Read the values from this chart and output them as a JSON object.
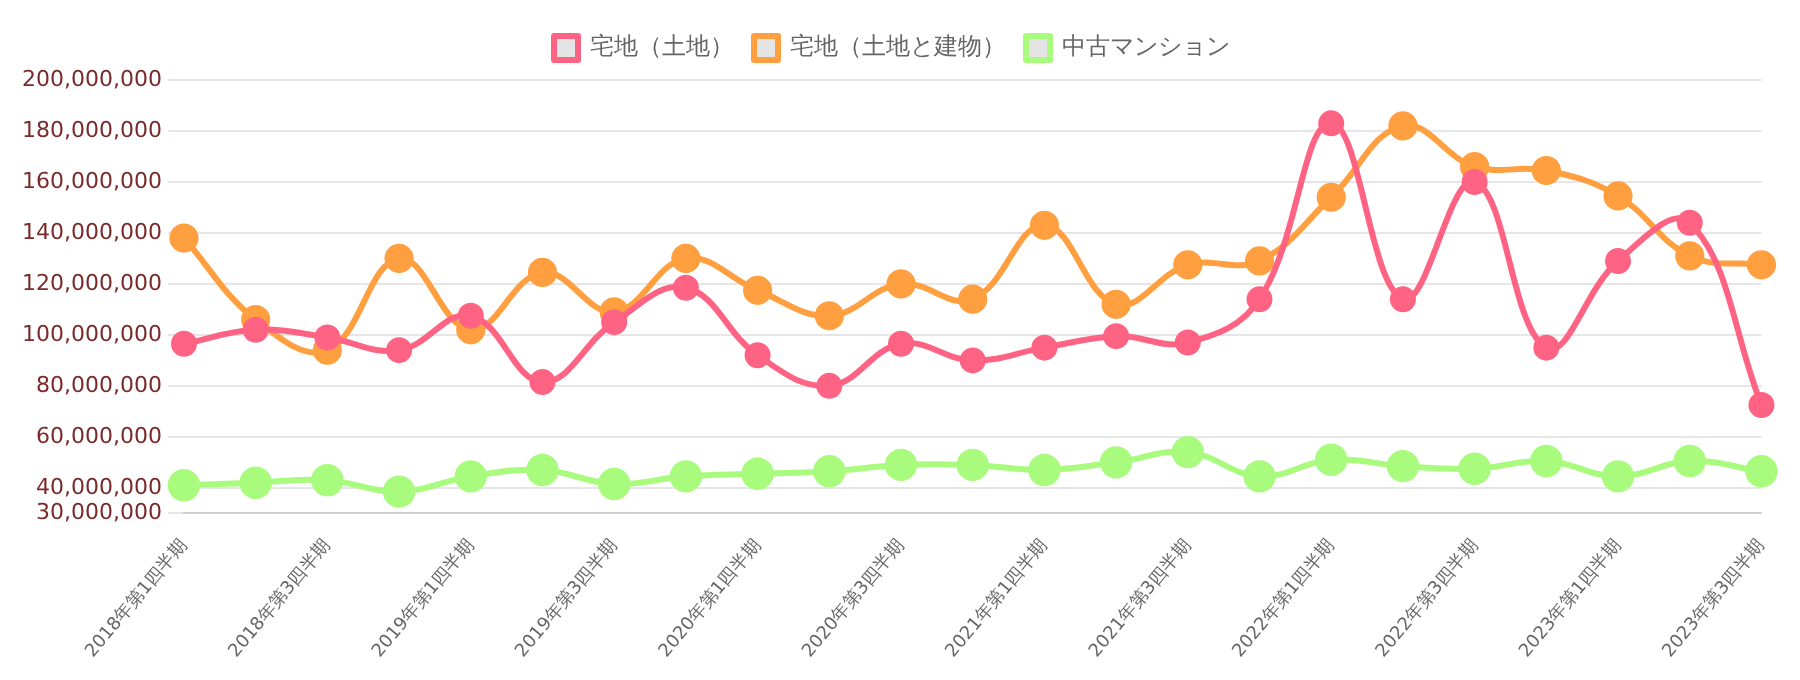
{
  "chart_data": {
    "type": "line",
    "categories": [
      "2018年第1四半期",
      null,
      "2018年第3四半期",
      null,
      "2019年第1四半期",
      null,
      "2019年第3四半期",
      null,
      "2020年第1四半期",
      null,
      "2020年第3四半期",
      null,
      "2021年第1四半期",
      null,
      "2021年第3四半期",
      null,
      "2022年第1四半期",
      null,
      "2022年第3四半期",
      null,
      "2023年第1四半期",
      null,
      "2023年第3四半期"
    ],
    "series": [
      {
        "name": "宅地（土地）",
        "color": "#ff6384",
        "values": [
          96500000,
          102000000,
          99000000,
          94000000,
          107500000,
          81500000,
          105000000,
          118500000,
          92000000,
          80000000,
          96500000,
          90000000,
          95000000,
          99500000,
          97000000,
          114000000,
          183000000,
          114000000,
          160000000,
          95000000,
          129000000,
          144000000,
          72500000
        ]
      },
      {
        "name": "宅地（土地と建物）",
        "color": "#ff9f40",
        "values": [
          138000000,
          106000000,
          94000000,
          130000000,
          102000000,
          124500000,
          109000000,
          130000000,
          117500000,
          107500000,
          120000000,
          114000000,
          143000000,
          112000000,
          127500000,
          129000000,
          154000000,
          182000000,
          166000000,
          164500000,
          154500000,
          131000000,
          127500000
        ]
      },
      {
        "name": "中古マンション",
        "color": "#a8fb7c",
        "values": [
          41000000,
          42000000,
          43000000,
          38500000,
          44500000,
          47000000,
          41500000,
          44500000,
          45500000,
          46500000,
          49000000,
          49000000,
          47000000,
          50000000,
          54000000,
          44500000,
          51000000,
          48500000,
          47500000,
          50500000,
          44500000,
          50500000,
          46500000
        ]
      }
    ],
    "ylim": [
      30000000,
      200000000
    ],
    "yticks": [
      {
        "value": 30000000,
        "label": "30,000,000"
      },
      {
        "value": 40000000,
        "label": "40,000,000"
      },
      {
        "value": 60000000,
        "label": "60,000,000"
      },
      {
        "value": 80000000,
        "label": "80,000,000"
      },
      {
        "value": 100000000,
        "label": "100,000,000"
      },
      {
        "value": 120000000,
        "label": "120,000,000"
      },
      {
        "value": 140000000,
        "label": "140,000,000"
      },
      {
        "value": 160000000,
        "label": "160,000,000"
      },
      {
        "value": 180000000,
        "label": "180,000,000"
      },
      {
        "value": 200000000,
        "label": "200,000,000"
      }
    ],
    "grid": "y",
    "legend": "top",
    "marker": "circle",
    "line_style": "solid"
  }
}
